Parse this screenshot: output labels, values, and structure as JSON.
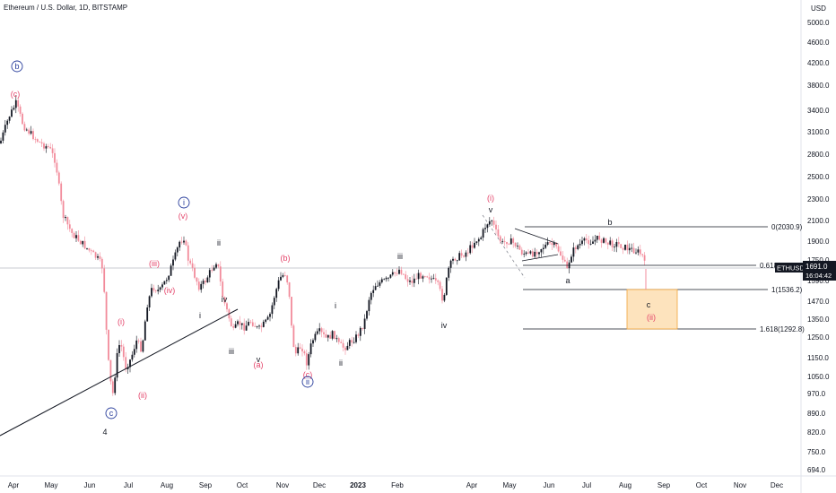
{
  "header": {
    "title": "Ethereum / U.S. Dollar, 1D, BITSTAMP",
    "currency": "USD"
  },
  "price_axis": {
    "ticks": [
      "5000.0",
      "4600.0",
      "4200.0",
      "3800.0",
      "3400.0",
      "3100.0",
      "2800.0",
      "2500.0",
      "2300.0",
      "2100.0",
      "1900.0",
      "1750.0",
      "1590.0",
      "1470.0",
      "1350.0",
      "1250.0",
      "1150.0",
      "1050.0",
      "970.0",
      "890.0",
      "820.0",
      "750.0",
      "694.0"
    ],
    "badge_label": "ETHUSD",
    "badge_price": "1691.0",
    "badge_time": "16:04:42",
    "badge_color": "#131722"
  },
  "time_axis": {
    "ticks": [
      "Apr",
      "May",
      "Jun",
      "Jul",
      "Aug",
      "Sep",
      "Oct",
      "Nov",
      "Dec",
      "2023",
      "Feb",
      "Apr",
      "May",
      "Jun",
      "Jul",
      "Aug",
      "Sep",
      "Oct",
      "Nov",
      "Dec"
    ]
  },
  "fib_levels": [
    {
      "label": "0(2030.9)",
      "value": 2030.9
    },
    {
      "label": "0.618",
      "value": 1737
    },
    {
      "label": "1(1536.2)",
      "value": 1536.2
    },
    {
      "label": "1.618(1292.8)",
      "value": 1292.8
    }
  ],
  "target_box": {
    "label_c": "c",
    "label_ii": "(ii)",
    "fill": "#fde3bd",
    "stroke": "#f0a43a"
  },
  "colors": {
    "up": "#131722",
    "down": "#f28b9b",
    "red_label": "#e4446a",
    "blue_label": "#2a3f9c"
  },
  "wave_labels": [
    {
      "text": "b",
      "style": "blue",
      "circled": true
    },
    {
      "text": "(c)",
      "style": "red"
    },
    {
      "text": "c",
      "style": "blue",
      "circled": true
    },
    {
      "text": "4",
      "style": "black-large"
    },
    {
      "text": "(i)",
      "style": "red"
    },
    {
      "text": "(ii)",
      "style": "red"
    },
    {
      "text": "(iii)",
      "style": "red"
    },
    {
      "text": "(iv)",
      "style": "red"
    },
    {
      "text": "(v)",
      "style": "red"
    },
    {
      "text": "i",
      "style": "blue",
      "circled": true
    },
    {
      "text": "i",
      "style": "black"
    },
    {
      "text": "ii",
      "style": "black"
    },
    {
      "text": "iii",
      "style": "black"
    },
    {
      "text": "iv",
      "style": "black"
    },
    {
      "text": "v",
      "style": "black"
    },
    {
      "text": "(a)",
      "style": "red"
    },
    {
      "text": "(b)",
      "style": "red"
    },
    {
      "text": "(c)",
      "style": "red"
    },
    {
      "text": "ii",
      "style": "blue",
      "circled": true
    },
    {
      "text": "i",
      "style": "black"
    },
    {
      "text": "ii",
      "style": "black"
    },
    {
      "text": "iii",
      "style": "black"
    },
    {
      "text": "iv",
      "style": "black"
    },
    {
      "text": "v",
      "style": "black"
    },
    {
      "text": "(i)",
      "style": "red"
    },
    {
      "text": "a",
      "style": "black"
    },
    {
      "text": "b",
      "style": "black"
    }
  ],
  "chart_data": {
    "type": "candlestick",
    "title": "Ethereum / U.S. Dollar, 1D, BITSTAMP",
    "y_scale": "log",
    "ylim": [
      660,
      5600
    ],
    "x_ticks": [
      "Apr",
      "May",
      "Jun",
      "Jul",
      "Aug",
      "Sep",
      "Oct",
      "Nov",
      "Dec",
      "2023",
      "Feb",
      "Apr",
      "May",
      "Jun",
      "Jul",
      "Aug",
      "Sep",
      "Oct",
      "Nov",
      "Dec"
    ],
    "price_series": {
      "name": "ETHUSD",
      "sampled_closes": [
        [
          "Apr 2022",
          3250
        ],
        [
          "Apr 2022",
          3500
        ],
        [
          "Apr 2022",
          3350
        ],
        [
          "May 2022",
          3000
        ],
        [
          "May 2022",
          2800
        ],
        [
          "May 2022",
          2050
        ],
        [
          "May 2022",
          1950
        ],
        [
          "Jun 2022",
          1800
        ],
        [
          "Jun 2022",
          1200
        ],
        [
          "Jun 2022",
          1050
        ],
        [
          "Jul 2022",
          1150
        ],
        [
          "Jul 2022",
          1400
        ],
        [
          "Jul 2022",
          1600
        ],
        [
          "Aug 2022",
          1750
        ],
        [
          "Aug 2022",
          1900
        ],
        [
          "Aug 2022",
          1650
        ],
        [
          "Sep 2022",
          1550
        ],
        [
          "Sep 2022",
          1700
        ],
        [
          "Sep 2022",
          1350
        ],
        [
          "Oct 2022",
          1300
        ],
        [
          "Oct 2022",
          1250
        ],
        [
          "Oct 2022",
          1350
        ],
        [
          "Nov 2022",
          1580
        ],
        [
          "Nov 2022",
          1150
        ],
        [
          "Nov 2022",
          1200
        ],
        [
          "Dec 2022",
          1250
        ],
        [
          "Dec 2022",
          1230
        ],
        [
          "Jan 2023",
          1220
        ],
        [
          "Jan 2023",
          1450
        ],
        [
          "Jan 2023",
          1600
        ],
        [
          "Feb 2023",
          1650
        ],
        [
          "Feb 2023",
          1600
        ],
        [
          "Mar 2023",
          1500
        ],
        [
          "Mar 2023",
          1750
        ],
        [
          "Apr 2023",
          1850
        ],
        [
          "Apr 2023",
          2050
        ],
        [
          "Apr 2023",
          1850
        ],
        [
          "May 2023",
          1830
        ],
        [
          "May 2023",
          1800
        ],
        [
          "Jun 2023",
          1650
        ],
        [
          "Jun 2023",
          1850
        ],
        [
          "Jul 2023",
          1950
        ],
        [
          "Jul 2023",
          1900
        ],
        [
          "Aug 2023",
          1850
        ],
        [
          "Aug 2023",
          1691
        ]
      ]
    },
    "current_price": 1691.0,
    "fib_levels": [
      {
        "ratio": "0",
        "value": 2030.9
      },
      {
        "ratio": "0.618",
        "value": 1737
      },
      {
        "ratio": "1",
        "value": 1536.2
      },
      {
        "ratio": "1.618",
        "value": 1292.8
      }
    ]
  }
}
